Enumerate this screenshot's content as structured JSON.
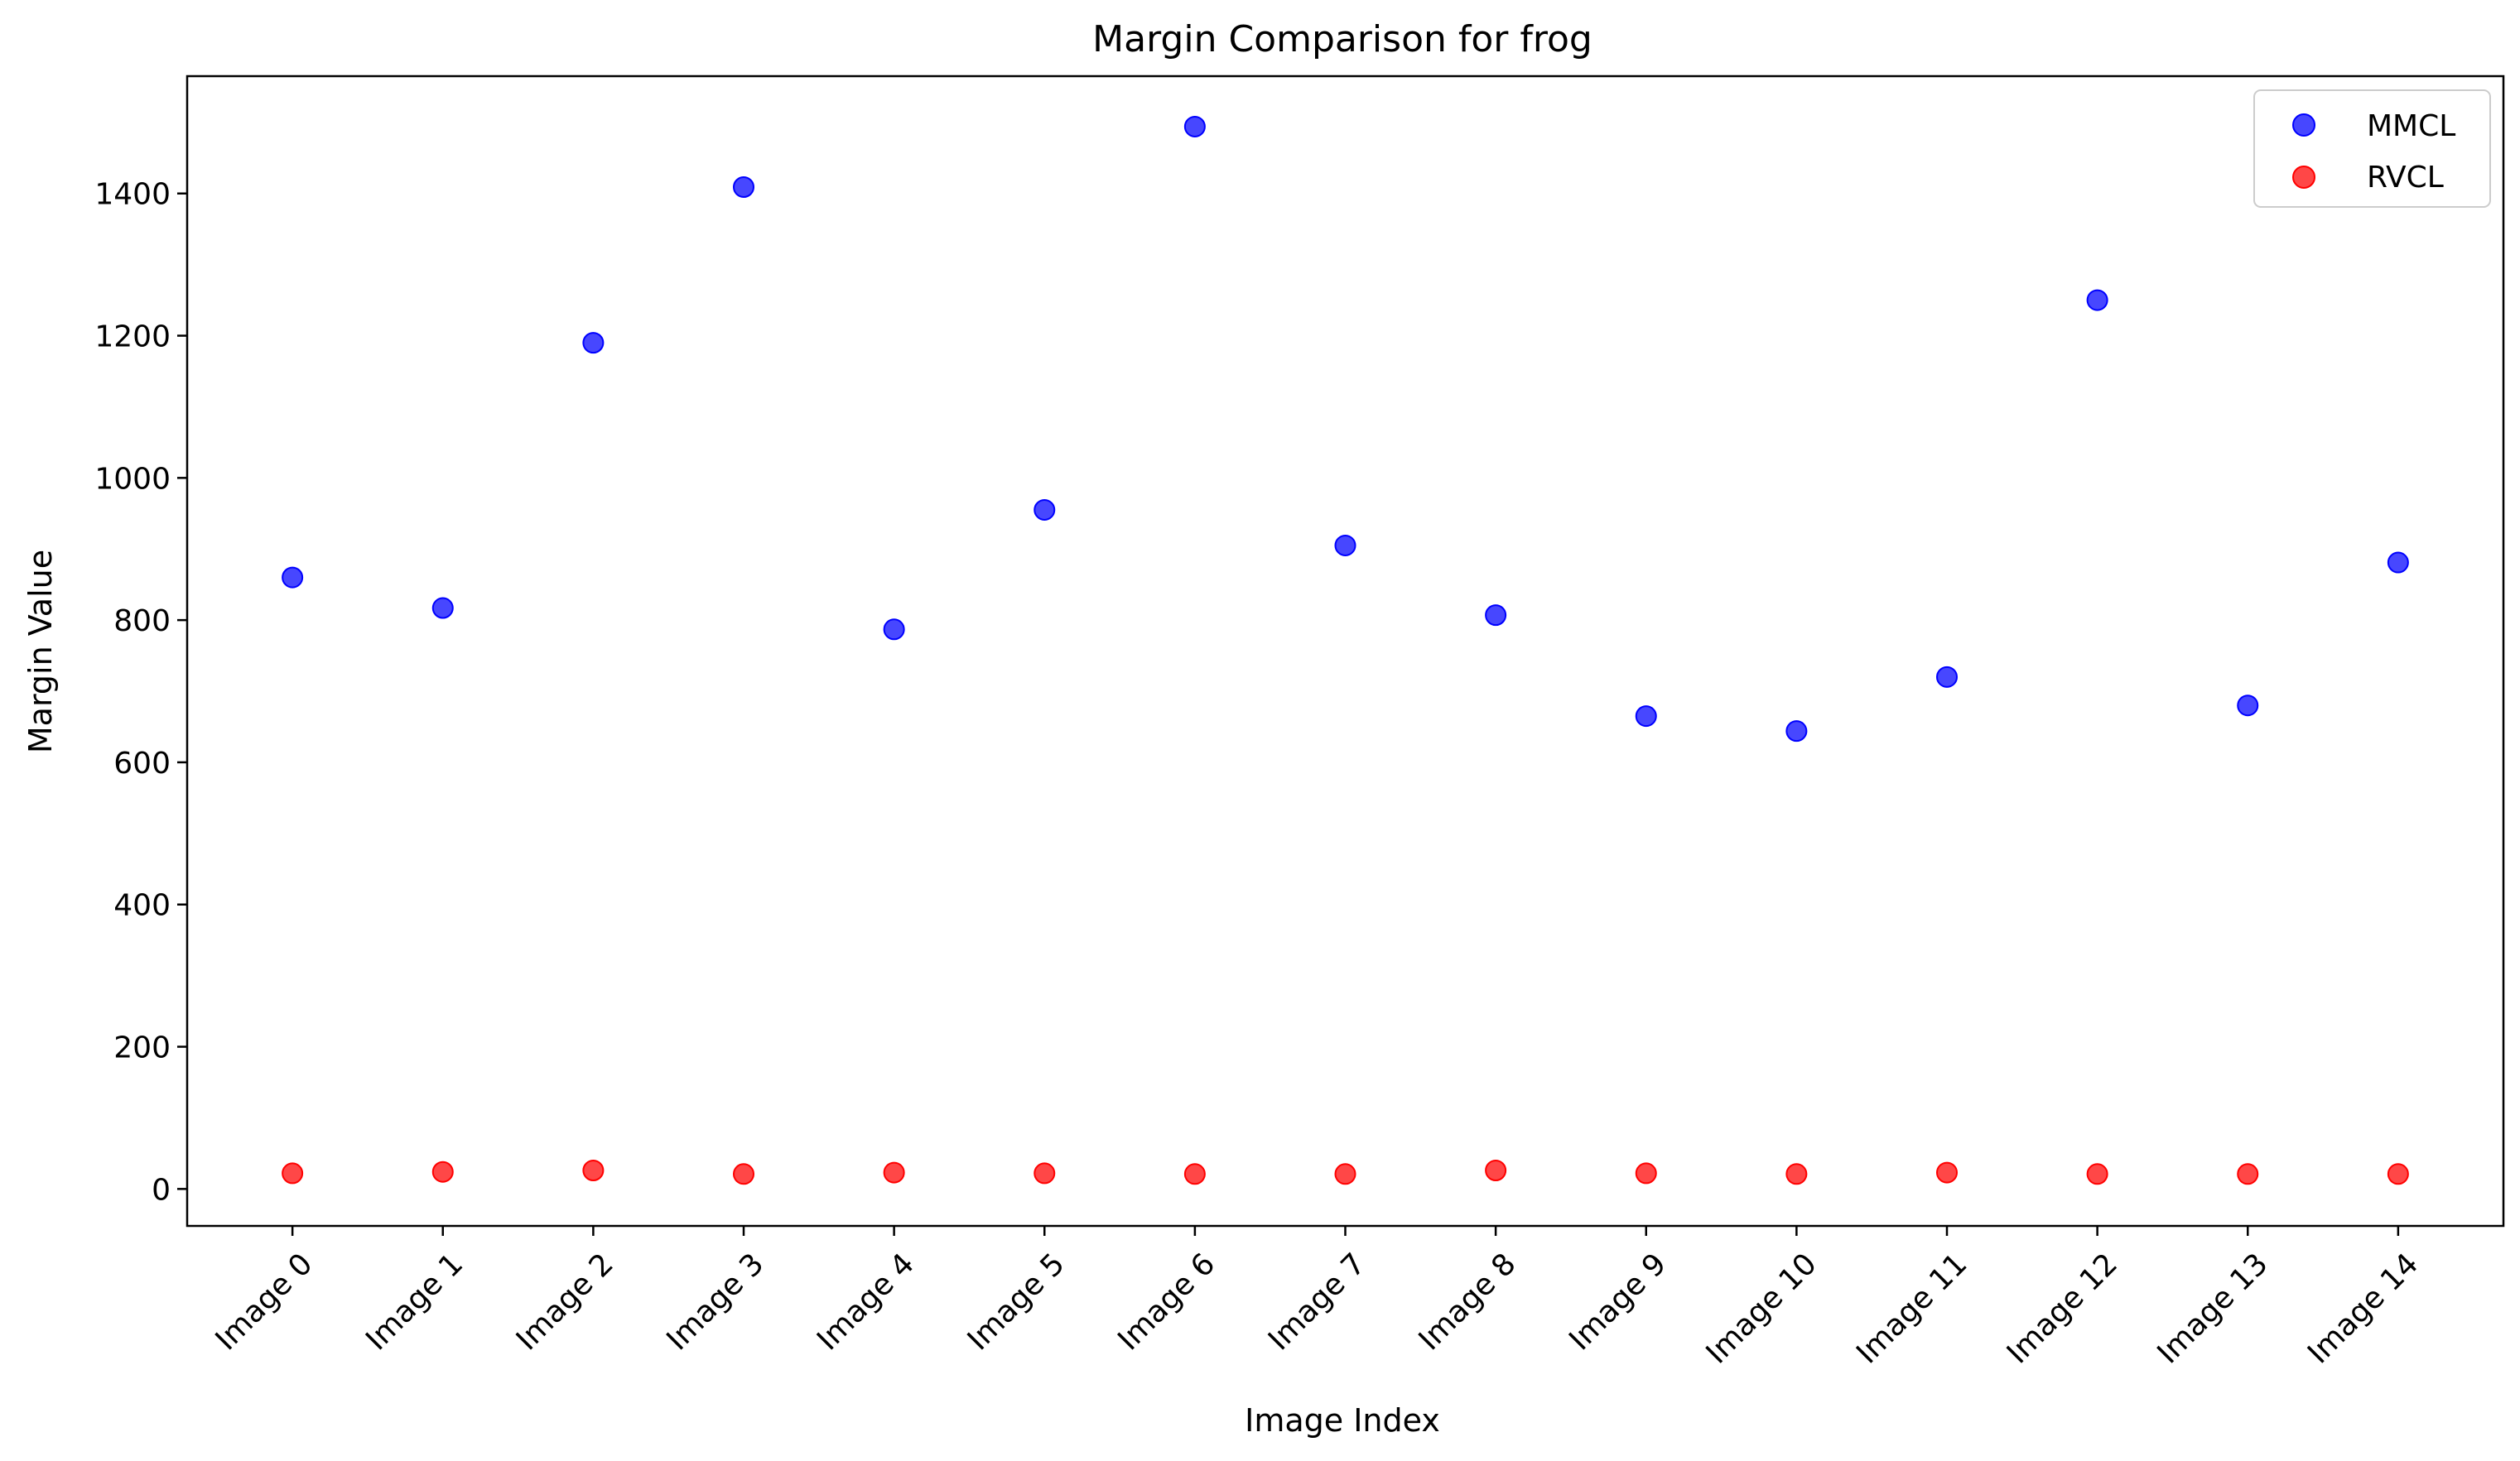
{
  "chart_data": {
    "type": "scatter",
    "title": "Margin Comparison for frog",
    "xlabel": "Image Index",
    "ylabel": "Margin Value",
    "categories": [
      "Image 0",
      "Image 1",
      "Image 2",
      "Image 3",
      "Image 4",
      "Image 5",
      "Image 6",
      "Image 7",
      "Image 8",
      "Image 9",
      "Image 10",
      "Image 11",
      "Image 12",
      "Image 13",
      "Image 14"
    ],
    "ylim": [
      -52,
      1565
    ],
    "yticks": [
      0,
      200,
      400,
      600,
      800,
      1000,
      1200,
      1400
    ],
    "grid": false,
    "legend_position": "top-right",
    "series": [
      {
        "name": "MMCL",
        "color": "#0000ff",
        "values": [
          860,
          817,
          1190,
          1409,
          787,
          955,
          1494,
          905,
          807,
          665,
          644,
          720,
          1250,
          680,
          881
        ]
      },
      {
        "name": "RVCL",
        "color": "#ff0000",
        "values": [
          22,
          24,
          26,
          21,
          23,
          22,
          21,
          21,
          26,
          22,
          21,
          23,
          21,
          21,
          21
        ]
      }
    ]
  }
}
